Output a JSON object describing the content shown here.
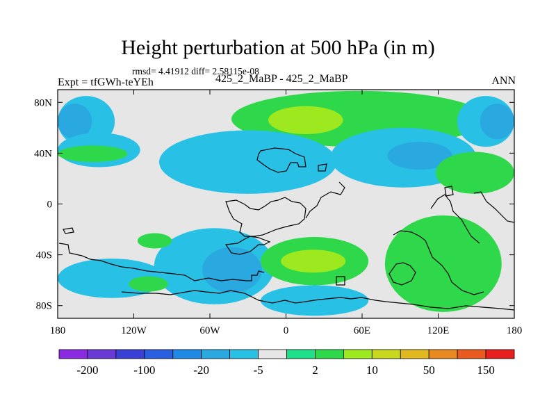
{
  "header": {
    "title": "Height perturbation at 500 hPa (in m)",
    "stats": "rmsd= 4.41912 diff= 2.58115e-08",
    "experiment": "Expt = tfGWh-teYEh",
    "center_label": "425_2_MaBP - 425_2_MaBP",
    "season": "ANN"
  },
  "colors": {
    "bins": [
      "#8a2be2",
      "#6a3ad6",
      "#3a3fd6",
      "#2a5fe0",
      "#1f8ae6",
      "#2aa8e0",
      "#29c0e6",
      "#e6e6e6",
      "#1fe08a",
      "#2fd84a",
      "#9ee81f",
      "#c8d81f",
      "#e0b81f",
      "#e88a1f",
      "#e85a1f",
      "#e81f1f"
    ],
    "background": "#e6e6e6",
    "coast": "#000000"
  },
  "chart_data": {
    "type": "heatmap",
    "title": "Height perturbation at 500 hPa (in m)",
    "xlabel": "",
    "ylabel": "",
    "xlim": [
      -180,
      180
    ],
    "ylim": [
      -90,
      90
    ],
    "x_ticks": [
      {
        "value": -180,
        "label": "180"
      },
      {
        "value": -120,
        "label": "120W"
      },
      {
        "value": -60,
        "label": "60W"
      },
      {
        "value": 0,
        "label": "0"
      },
      {
        "value": 60,
        "label": "60E"
      },
      {
        "value": 120,
        "label": "120E"
      },
      {
        "value": 180,
        "label": "180"
      }
    ],
    "y_ticks": [
      {
        "value": 80,
        "label": "80N"
      },
      {
        "value": 40,
        "label": "40N"
      },
      {
        "value": 0,
        "label": "0"
      },
      {
        "value": -40,
        "label": "40S"
      },
      {
        "value": -80,
        "label": "80S"
      }
    ],
    "colorbar_labels": [
      "-200",
      "-100",
      "-20",
      "-5",
      "2",
      "10",
      "50",
      "150"
    ],
    "features": [
      {
        "name": "blob-np-high",
        "value": 8,
        "lon": [
          -43,
          158
        ],
        "lat": [
          45,
          89
        ]
      },
      {
        "name": "blob-np-high-core",
        "value": 12,
        "lon": [
          -14,
          45
        ],
        "lat": [
          55,
          77
        ]
      },
      {
        "name": "blob-nw-blue",
        "value": -6,
        "lon": [
          -180,
          -135
        ],
        "lat": [
          45,
          85
        ]
      },
      {
        "name": "blob-nw-blue-core",
        "value": -20,
        "lon": [
          -180,
          -153
        ],
        "lat": [
          51,
          79
        ]
      },
      {
        "name": "blob-ne-blue",
        "value": -6,
        "lon": [
          135,
          180
        ],
        "lat": [
          45,
          85
        ]
      },
      {
        "name": "blob-ne-blue-core",
        "value": -20,
        "lon": [
          153,
          180
        ],
        "lat": [
          51,
          79
        ]
      },
      {
        "name": "blob-nw-mid",
        "value": -6,
        "lon": [
          -180,
          -115
        ],
        "lat": [
          29,
          56
        ]
      },
      {
        "name": "blob-nw-green",
        "value": 6,
        "lon": [
          -180,
          -125
        ],
        "lat": [
          33,
          46
        ]
      },
      {
        "name": "blob-natl-blue",
        "value": -6,
        "lon": [
          -100,
          40
        ],
        "lat": [
          8,
          58
        ]
      },
      {
        "name": "blob-eu-blue",
        "value": -6,
        "lon": [
          35,
          150
        ],
        "lat": [
          13,
          60
        ]
      },
      {
        "name": "blob-eu-blue-core",
        "value": -20,
        "lon": [
          80,
          131
        ],
        "lat": [
          27,
          49
        ]
      },
      {
        "name": "blob-ne-green",
        "value": 6,
        "lon": [
          118,
          180
        ],
        "lat": [
          8,
          41
        ]
      },
      {
        "name": "blob-sw-blue",
        "value": -6,
        "lon": [
          -180,
          -95
        ],
        "lat": [
          -74,
          -43
        ]
      },
      {
        "name": "blob-satl-blue",
        "value": -6,
        "lon": [
          -104,
          -9
        ],
        "lat": [
          -79,
          -19
        ]
      },
      {
        "name": "blob-satl-blue-core",
        "value": -20,
        "lon": [
          -66,
          -19
        ],
        "lat": [
          -70,
          -34
        ]
      },
      {
        "name": "blob-sa-high",
        "value": 6,
        "lon": [
          -20,
          65
        ],
        "lat": [
          -64,
          -26
        ]
      },
      {
        "name": "blob-sa-high-core",
        "value": 12,
        "lon": [
          -4,
          47
        ],
        "lat": [
          -54,
          -36
        ]
      },
      {
        "name": "blob-saus-high",
        "value": 6,
        "lon": [
          78,
          170
        ],
        "lat": [
          -85,
          -9
        ]
      },
      {
        "name": "blob-spac-green-1",
        "value": 6,
        "lon": [
          -117,
          -90
        ],
        "lat": [
          -35,
          -23
        ]
      },
      {
        "name": "blob-spac-green-2",
        "value": 6,
        "lon": [
          -124,
          -93
        ],
        "lat": [
          -69,
          -57
        ]
      },
      {
        "name": "blob-so-blue",
        "value": -6,
        "lon": [
          -20,
          65
        ],
        "lat": [
          -88,
          -64
        ]
      }
    ]
  }
}
